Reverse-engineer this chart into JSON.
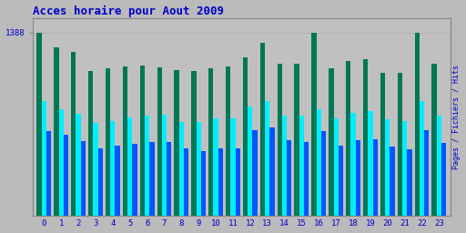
{
  "title": "Acces horaire pour Aout 2009",
  "ylabel_right": "Pages / Fichiers / Hits",
  "xlabel_values": [
    0,
    1,
    2,
    3,
    4,
    5,
    6,
    7,
    8,
    9,
    10,
    11,
    12,
    13,
    14,
    15,
    16,
    17,
    18,
    19,
    20,
    21,
    22,
    23
  ],
  "hits": [
    1388,
    1280,
    1240,
    1100,
    1120,
    1130,
    1140,
    1125,
    1105,
    1095,
    1120,
    1130,
    1200,
    1310,
    1155,
    1155,
    1388,
    1115,
    1175,
    1185,
    1085,
    1080,
    1388,
    1155
  ],
  "pages": [
    870,
    810,
    770,
    700,
    720,
    745,
    755,
    765,
    710,
    710,
    740,
    740,
    830,
    870,
    760,
    760,
    810,
    740,
    780,
    790,
    730,
    720,
    870,
    760
  ],
  "fichiers": [
    640,
    610,
    565,
    510,
    530,
    545,
    555,
    560,
    510,
    490,
    510,
    510,
    650,
    670,
    570,
    555,
    640,
    530,
    570,
    580,
    520,
    505,
    650,
    550
  ],
  "hits_color": "#007755",
  "pages_color": "#00EEFF",
  "fichiers_color": "#0055FF",
  "bg_color": "#BBBBBB",
  "plot_bg_color": "#C0C0C0",
  "title_color": "#0000CC",
  "ylabel_color": "#0000CC",
  "tick_color": "#0000CC",
  "ymax": 1500,
  "ymin": 0,
  "ytick_val": 1388
}
